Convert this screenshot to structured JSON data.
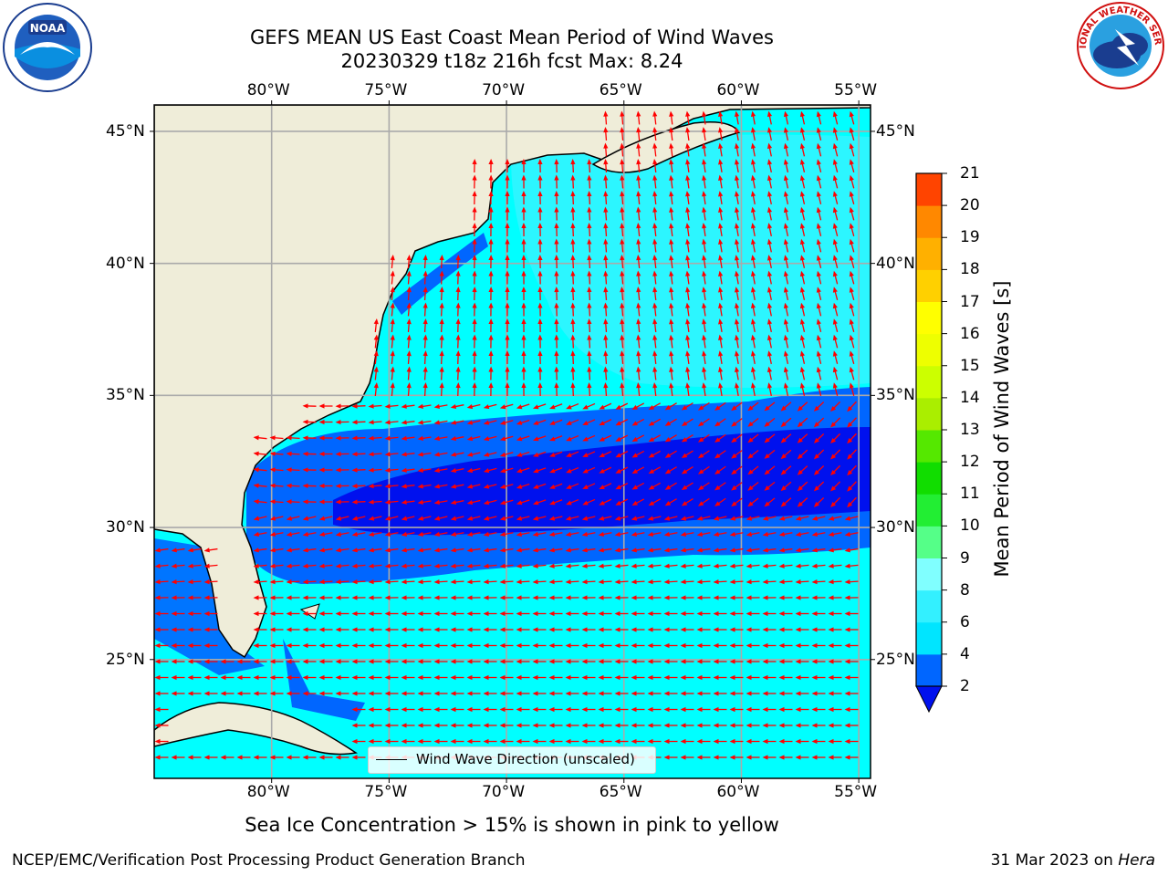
{
  "title": {
    "line1": "GEFS MEAN US East Coast Mean Period of Wind Waves",
    "line2": "20230329 t18z 216h fcst    Max: 8.24"
  },
  "axes": {
    "lon_labels": [
      "80°W",
      "75°W",
      "70°W",
      "65°W",
      "60°W",
      "55°W"
    ],
    "lat_labels": [
      "45°N",
      "40°N",
      "35°N",
      "30°N",
      "25°N"
    ],
    "lon_values": [
      -80,
      -75,
      -70,
      -65,
      -60,
      -55
    ],
    "lat_values": [
      45,
      40,
      35,
      30,
      25
    ],
    "lon_range": [
      -85,
      -54.5
    ],
    "lat_range": [
      20.5,
      46
    ]
  },
  "colorbar": {
    "title": "Mean Period of Wind Waves [s]",
    "ticks": [
      "2",
      "4",
      "6",
      "8",
      "9",
      "10",
      "11",
      "12",
      "13",
      "14",
      "15",
      "16",
      "17",
      "18",
      "19",
      "20",
      "21"
    ],
    "colors": [
      "#0066ff",
      "#00e5ff",
      "#33f0ff",
      "#80ffff",
      "#55ff88",
      "#22ee33",
      "#11dd00",
      "#55e800",
      "#aaee00",
      "#ccff00",
      "#eeff00",
      "#ffff00",
      "#ffd000",
      "#ffb000",
      "#ff8800",
      "#ff4400",
      "#ff1100"
    ],
    "extend_color": "#0011ee"
  },
  "legend": {
    "label": "Wind Wave Direction (unscaled)"
  },
  "caption": "Sea Ice Concentration > 15% is shown in pink to yellow",
  "footer": {
    "left": "NCEP/EMC/Verification Post Processing Product Generation Branch",
    "right_date": "31 Mar 2023 on",
    "right_machine": "Hera"
  },
  "logos": {
    "left": "noaa-logo",
    "right": "nws-logo",
    "right_text": "NATIONAL WEATHER SERVICE"
  },
  "colors": {
    "land": "#efedd9",
    "ocean_base": "#00ffff",
    "ocean_band": "#0066ff",
    "ocean_core": "#0011ee",
    "arrow": "#ff0000",
    "grid": "#aaaaaa"
  }
}
